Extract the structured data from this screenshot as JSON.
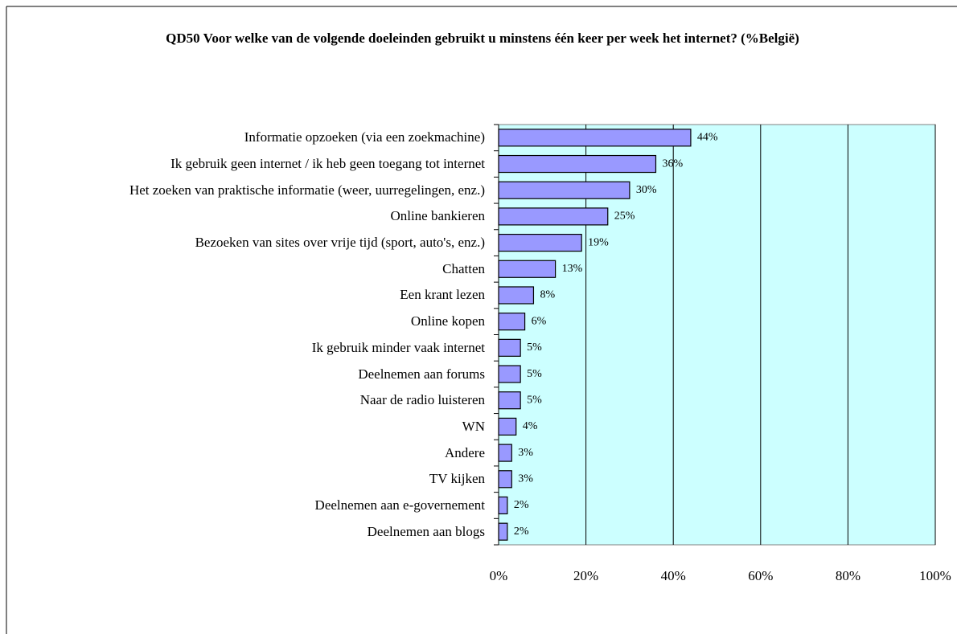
{
  "chart_data": {
    "type": "bar",
    "orientation": "horizontal",
    "title": "QD50 Voor welke van de volgende doeleinden gebruikt u minstens één keer per week  het internet? (%België)",
    "categories": [
      "Informatie opzoeken (via een zoekmachine)",
      "Ik gebruik geen internet / ik heb geen toegang tot internet",
      "Het zoeken van praktische informatie (weer, uurregelingen, enz.)",
      "Online bankieren",
      "Bezoeken van sites over vrije tijd (sport, auto's, enz.)",
      "Chatten",
      "Een krant lezen",
      "Online kopen",
      "Ik gebruik minder vaak internet",
      "Deelnemen aan forums",
      "Naar de radio luisteren",
      "WN",
      "Andere",
      "TV kijken",
      "Deelnemen aan e-governement",
      "Deelnemen aan blogs"
    ],
    "values": [
      44,
      36,
      30,
      25,
      19,
      13,
      8,
      6,
      5,
      5,
      5,
      4,
      3,
      3,
      2,
      2
    ],
    "value_labels": [
      "44%",
      "36%",
      "30%",
      "25%",
      "19%",
      "13%",
      "8%",
      "6%",
      "5%",
      "5%",
      "5%",
      "4%",
      "3%",
      "3%",
      "2%",
      "2%"
    ],
    "color": "#9999ff",
    "xlim": [
      0,
      100
    ],
    "xticks": [
      {
        "value": 0,
        "label": "0%"
      },
      {
        "value": 20,
        "label": "20%"
      },
      {
        "value": 40,
        "label": "40%"
      },
      {
        "value": 60,
        "label": "60%"
      },
      {
        "value": 80,
        "label": "80%"
      },
      {
        "value": 100,
        "label": "100%"
      }
    ],
    "grid": true
  }
}
